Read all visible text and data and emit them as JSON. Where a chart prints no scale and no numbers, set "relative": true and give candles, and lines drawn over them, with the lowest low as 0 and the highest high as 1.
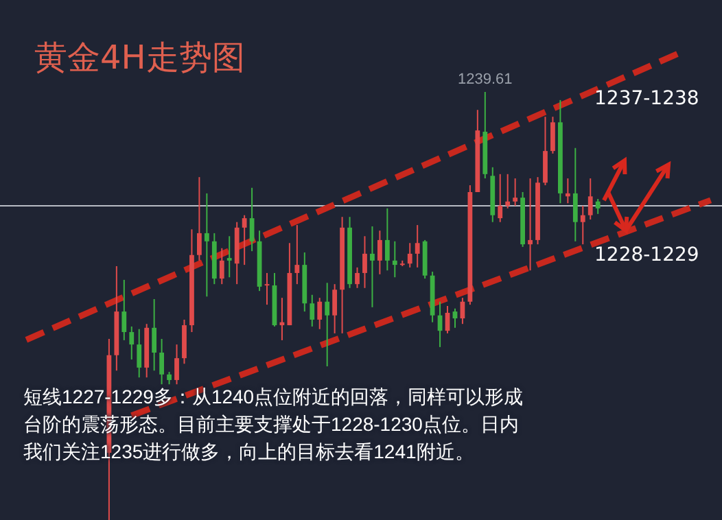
{
  "chart_data": {
    "type": "candlestick",
    "relative": true,
    "title": "黄金4H走势图",
    "categories": [
      null,
      null,
      null,
      null,
      null,
      null,
      null,
      null,
      null,
      null,
      null,
      null,
      null,
      null,
      null,
      null,
      null,
      null,
      null,
      null,
      null,
      null,
      null,
      null,
      null,
      null,
      null,
      null,
      null,
      null,
      null,
      null,
      null,
      null,
      null,
      null,
      null,
      null,
      null,
      null,
      null,
      null,
      null,
      null,
      null,
      null,
      null,
      null,
      null,
      null,
      null,
      null,
      null,
      null,
      null,
      null,
      null,
      null,
      null,
      null,
      null,
      null,
      null,
      null,
      null,
      null,
      null,
      null,
      null,
      null,
      null,
      null,
      null,
      null,
      null,
      null,
      null,
      null,
      null,
      null,
      null,
      null,
      null,
      null,
      null,
      null,
      null,
      null,
      null,
      null,
      null,
      null,
      null,
      null,
      null,
      null
    ],
    "ohlc": [
      null,
      null,
      null,
      null,
      null,
      null,
      null,
      null,
      null,
      null,
      null,
      null,
      null,
      null,
      [
        0.157,
        0.423,
        0,
        0.385
      ],
      [
        0.385,
        0.593,
        0.349,
        0.487
      ],
      [
        0.487,
        0.561,
        0.42,
        0.439
      ],
      [
        0.439,
        0.452,
        0.375,
        0.41
      ],
      [
        0.41,
        0.446,
        0.333,
        0.356
      ],
      [
        0.356,
        0.458,
        0.333,
        0.449
      ],
      [
        0.449,
        0.516,
        0.349,
        0.391
      ],
      [
        0.391,
        0.423,
        0.317,
        0.34
      ],
      [
        0.34,
        0.346,
        0.317,
        0.327
      ],
      [
        0.327,
        0.41,
        0.317,
        0.378
      ],
      [
        0.378,
        0.468,
        0.365,
        0.455
      ],
      [
        0.455,
        0.679,
        0.439,
        0.619
      ],
      [
        0.619,
        0.801,
        0.606,
        0.67
      ],
      [
        0.67,
        0.763,
        0.522,
        0.651
      ],
      [
        0.651,
        0.67,
        0.551,
        0.564
      ],
      [
        0.564,
        0.635,
        0.551,
        0.606
      ],
      [
        0.612,
        0.663,
        0.567,
        0.606
      ],
      [
        0.599,
        0.696,
        0.551,
        0.683
      ],
      [
        0.683,
        0.712,
        0.596,
        0.705
      ],
      [
        0.705,
        0.776,
        0.628,
        0.651
      ],
      [
        0.651,
        0.676,
        0.535,
        0.545
      ],
      [
        0.548,
        0.577,
        0.503,
        0.551
      ],
      [
        0.548,
        0.577,
        0.452,
        0.455
      ],
      [
        0.455,
        0.519,
        0.42,
        0.462
      ],
      [
        0.455,
        0.647,
        0.455,
        0.577
      ],
      [
        0.577,
        0.689,
        0.551,
        0.596
      ],
      [
        0.596,
        0.625,
        0.487,
        0.506
      ],
      [
        0.506,
        0.526,
        0.452,
        0.468
      ],
      [
        0.468,
        0.519,
        0.446,
        0.51
      ],
      [
        0.51,
        0.554,
        0.359,
        0.478
      ],
      [
        0.478,
        0.551,
        0.436,
        0.538
      ],
      [
        0.538,
        0.708,
        0.436,
        0.683
      ],
      [
        0.683,
        0.708,
        0.542,
        0.551
      ],
      [
        0.551,
        0.59,
        0.542,
        0.577
      ],
      [
        0.577,
        0.663,
        0.542,
        0.622
      ],
      [
        0.622,
        0.686,
        0.497,
        0.606
      ],
      [
        0.606,
        0.676,
        0.574,
        0.654
      ],
      [
        0.654,
        0.728,
        0.583,
        0.606
      ],
      [
        0.606,
        0.651,
        0.567,
        0.596
      ],
      [
        0.596,
        0.606,
        0.593,
        0.599
      ],
      [
        0.599,
        0.647,
        0.59,
        0.622
      ],
      [
        0.622,
        0.689,
        0.59,
        0.647
      ],
      [
        0.651,
        0.654,
        0.564,
        0.571
      ],
      [
        0.571,
        0.58,
        0.462,
        0.478
      ],
      [
        0.478,
        0.51,
        0.404,
        0.442
      ],
      [
        0.442,
        0.5,
        0.436,
        0.484
      ],
      [
        0.487,
        0.494,
        0.449,
        0.471
      ],
      [
        0.471,
        0.519,
        0.458,
        0.51
      ],
      [
        0.51,
        0.782,
        0.503,
        0.766
      ],
      [
        0.766,
        0.958,
        0.766,
        0.91
      ],
      [
        0.907,
        1,
        0.798,
        0.808
      ],
      [
        0.804,
        0.824,
        0.696,
        0.712
      ],
      [
        0.705,
        0.808,
        0.696,
        0.734
      ],
      [
        0.734,
        0.808,
        0.728,
        0.744
      ],
      [
        0.744,
        0.798,
        0.734,
        0.753
      ],
      [
        0.753,
        0.766,
        0.638,
        0.644
      ],
      [
        0.644,
        0.798,
        0.583,
        0.654
      ],
      [
        0.654,
        0.801,
        0.644,
        0.788
      ],
      [
        0.788,
        0.942,
        0.782,
        0.862
      ],
      [
        0.862,
        0.942,
        0.856,
        0.929
      ],
      [
        0.929,
        0.981,
        0.74,
        0.763
      ],
      [
        0.756,
        0.798,
        0.74,
        0.763
      ],
      [
        0.763,
        0.869,
        0.651,
        0.696
      ],
      [
        0.696,
        0.734,
        0.644,
        0.712
      ],
      [
        0.712,
        0.798,
        0.702,
        0.756
      ],
      [
        0.744,
        0.75,
        0.715,
        0.728
      ],
      null,
      null,
      null,
      null,
      null,
      null,
      null,
      null,
      null,
      null,
      null,
      null,
      null,
      null,
      null,
      null
    ],
    "colors": [
      null,
      null,
      null,
      null,
      null,
      null,
      null,
      null,
      null,
      null,
      null,
      null,
      null,
      null,
      "#e04b4b",
      "#e04b4b",
      "#3cb043",
      "#3cb043",
      "#3cb043",
      "#e04b4b",
      "#3cb043",
      "#3cb043",
      "#3cb043",
      "#e04b4b",
      "#e04b4b",
      "#e04b4b",
      "#e04b4b",
      "#3cb043",
      "#3cb043",
      "#e04b4b",
      "#3cb043",
      "#e04b4b",
      "#e04b4b",
      "#3cb043",
      "#3cb043",
      "#e04b4b",
      "#3cb043",
      "#e04b4b",
      "#e04b4b",
      "#e04b4b",
      "#3cb043",
      "#3cb043",
      "#e04b4b",
      "#3cb043",
      "#e04b4b",
      "#e04b4b",
      "#3cb043",
      "#e04b4b",
      "#e04b4b",
      "#3cb043",
      "#e04b4b",
      "#3cb043",
      "#3cb043",
      "#e04b4b",
      "#e04b4b",
      "#e04b4b",
      "#3cb043",
      "#3cb043",
      "#3cb043",
      "#e04b4b",
      "#3cb043",
      "#e04b4b",
      "#e04b4b",
      "#e04b4b",
      "#3cb043",
      "#3cb043",
      "#e04b4b",
      "#e04b4b",
      "#e04b4b",
      "#3cb043",
      "#e04b4b",
      "#e04b4b",
      "#e04b4b",
      "#e04b4b",
      "#3cb043",
      "#e04b4b",
      "#3cb043",
      "#e04b4b",
      "#e04b4b",
      "#3cb043",
      null,
      null,
      null,
      null,
      null,
      null,
      null,
      null,
      null,
      null,
      null,
      null,
      null,
      null,
      null,
      null
    ],
    "series": [
      {
        "type": "line",
        "color": "#c8281e",
        "line_style": "dashed",
        "values": [
          null,
          null,
          null,
          0.421,
          null,
          null,
          null,
          null,
          null,
          null,
          null,
          null,
          null,
          null,
          null,
          null,
          null,
          null,
          null,
          null,
          null,
          null,
          null,
          null,
          null,
          null,
          null,
          null,
          null,
          null,
          null,
          null,
          null,
          null,
          null,
          null,
          null,
          null,
          null,
          null,
          null,
          null,
          null,
          null,
          null,
          null,
          null,
          null,
          null,
          null,
          null,
          null,
          null,
          null,
          null,
          null,
          null,
          null,
          null,
          null,
          null,
          null,
          null,
          null,
          null,
          null,
          null,
          null,
          null,
          null,
          null,
          null,
          null,
          null,
          null,
          null,
          null,
          null,
          null,
          null,
          null,
          null,
          null,
          null,
          null,
          null,
          null,
          null,
          null,
          null,
          1.092,
          null,
          null,
          null,
          null,
          null
        ]
      },
      {
        "type": "line",
        "color": "#c8281e",
        "line_style": "dashed",
        "values": [
          null,
          null,
          null,
          null,
          null,
          null,
          null,
          null,
          null,
          null,
          null,
          null,
          null,
          null,
          null,
          null,
          null,
          0.244,
          null,
          null,
          null,
          null,
          null,
          null,
          null,
          null,
          null,
          null,
          null,
          null,
          null,
          null,
          null,
          null,
          null,
          null,
          null,
          null,
          null,
          null,
          null,
          null,
          null,
          null,
          null,
          null,
          null,
          null,
          null,
          null,
          null,
          null,
          null,
          null,
          null,
          null,
          null,
          null,
          null,
          null,
          null,
          null,
          null,
          null,
          null,
          null,
          null,
          null,
          null,
          null,
          null,
          null,
          null,
          null,
          null,
          null,
          null,
          null,
          null,
          null,
          null,
          null,
          null,
          null,
          null,
          null,
          null,
          null,
          null,
          null,
          null,
          null,
          null,
          null,
          0.747,
          null
        ]
      }
    ],
    "ref_lines": [
      {
        "axis": "y",
        "value": 0.734,
        "color": "#b8bcc4"
      }
    ],
    "annotations": [
      {
        "text": "1239.61",
        "y": 1
      },
      "1237-1238",
      "1228-1229",
      "短线1227-1229多：从1240点位附近的回落，同样可以形成台阶的震荡形态。目前主要支撑处于1228-1230点位。日内我们关注1235进行做多，向上的目标去看1241附近。"
    ]
  }
}
